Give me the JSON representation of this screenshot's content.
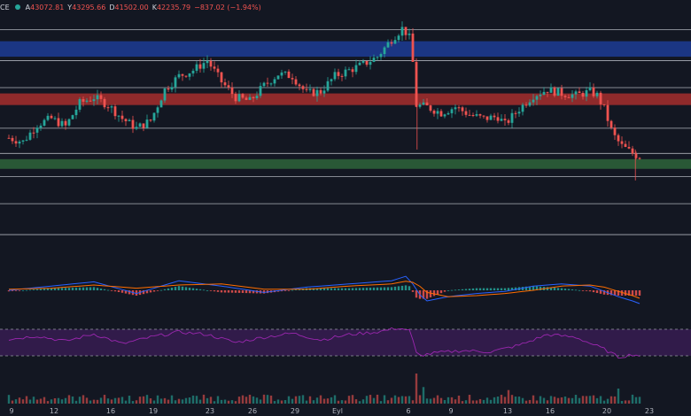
{
  "header": {
    "ticker": "CE",
    "status_color": "#26a69a",
    "ohlc": [
      {
        "label": "A",
        "value": "43072.81"
      },
      {
        "label": "Y",
        "value": "43295.66"
      },
      {
        "label": "D",
        "value": "41502.00"
      },
      {
        "label": "K",
        "value": "42235.79"
      }
    ],
    "change": "−837.02 (−1.94%)",
    "value_color": "#ef5350"
  },
  "colors": {
    "background": "#131722",
    "up": "#26a69a",
    "down": "#ef5350",
    "zone_blue": "#1e3fa0",
    "zone_red": "#b2302e",
    "zone_green": "#2f6a3c",
    "hline": "#c8cbd2",
    "rsi_line": "#9c27b0",
    "rsi_band": "#4a1f6b",
    "macd_line": "#2962ff",
    "signal_line": "#ff6d00"
  },
  "chart_data": {
    "type": "candlestick",
    "x_tick_labels": [
      "9",
      "12",
      "16",
      "19",
      "23",
      "26",
      "29",
      "Eyl",
      "6",
      "9",
      "13",
      "16",
      "20",
      "23"
    ],
    "x_tick_days": [
      0,
      3,
      7,
      10,
      14,
      17,
      20,
      23,
      28,
      31,
      35,
      38,
      42,
      45
    ],
    "price_levels": [
      35.2,
      38.4,
      41.2,
      43.6,
      46.2,
      50.4,
      53.2,
      56.4
    ],
    "zones": [
      {
        "name": "resistance-blue",
        "from": 53.6,
        "to": 55.2
      },
      {
        "name": "resistance-red",
        "from": 48.6,
        "to": 49.8
      },
      {
        "name": "support-green",
        "from": 42.0,
        "to": 43.0
      }
    ],
    "close_path": [
      [
        0,
        45.2
      ],
      [
        1,
        44.8
      ],
      [
        2,
        46.6
      ],
      [
        3,
        47.2
      ],
      [
        4,
        46.4
      ],
      [
        5,
        48.8
      ],
      [
        6,
        49.4
      ],
      [
        7,
        48.6
      ],
      [
        8,
        47.2
      ],
      [
        9,
        46.2
      ],
      [
        10,
        47.0
      ],
      [
        11,
        50.2
      ],
      [
        12,
        51.6
      ],
      [
        13,
        52.2
      ],
      [
        14,
        53.2
      ],
      [
        15,
        51.0
      ],
      [
        16,
        49.4
      ],
      [
        17,
        49.0
      ],
      [
        18,
        50.6
      ],
      [
        19,
        51.8
      ],
      [
        20,
        51.6
      ],
      [
        21,
        49.8
      ],
      [
        22,
        50.0
      ],
      [
        23,
        51.6
      ],
      [
        24,
        52.2
      ],
      [
        25,
        52.8
      ],
      [
        26,
        53.6
      ],
      [
        27,
        55.4
      ],
      [
        27.8,
        56.6
      ],
      [
        28.4,
        55.2
      ],
      [
        28.7,
        48.6
      ],
      [
        29.5,
        48.4
      ],
      [
        30.5,
        47.8
      ],
      [
        31.5,
        48.4
      ],
      [
        32.5,
        47.6
      ],
      [
        33.5,
        47.2
      ],
      [
        34.5,
        47.4
      ],
      [
        35,
        46.6
      ],
      [
        36,
        48.2
      ],
      [
        37,
        49.6
      ],
      [
        38,
        50.2
      ],
      [
        39,
        49.8
      ],
      [
        40,
        49.6
      ],
      [
        41,
        50.0
      ],
      [
        41.5,
        49.6
      ],
      [
        42,
        48.2
      ],
      [
        42.6,
        45.6
      ],
      [
        43.2,
        44.4
      ],
      [
        44,
        43.6
      ],
      [
        44.6,
        43.2
      ]
    ],
    "macd_path": [
      [
        0,
        0.0
      ],
      [
        3,
        0.4
      ],
      [
        6,
        0.8
      ],
      [
        9,
        -0.3
      ],
      [
        12,
        0.9
      ],
      [
        15,
        0.4
      ],
      [
        18,
        -0.2
      ],
      [
        21,
        0.3
      ],
      [
        24,
        0.6
      ],
      [
        27,
        0.9
      ],
      [
        28.2,
        1.4
      ],
      [
        28.8,
        -0.2
      ],
      [
        29.5,
        -1.0
      ],
      [
        31,
        -0.6
      ],
      [
        33,
        -0.3
      ],
      [
        35,
        -0.1
      ],
      [
        37,
        0.4
      ],
      [
        39,
        0.6
      ],
      [
        41,
        0.4
      ],
      [
        42,
        -0.1
      ],
      [
        43,
        -0.6
      ],
      [
        44,
        -1.0
      ],
      [
        44.6,
        -1.3
      ]
    ],
    "signal_path": [
      [
        0,
        0.1
      ],
      [
        3,
        0.2
      ],
      [
        6,
        0.5
      ],
      [
        9,
        0.2
      ],
      [
        12,
        0.5
      ],
      [
        15,
        0.6
      ],
      [
        18,
        0.1
      ],
      [
        21,
        0.1
      ],
      [
        24,
        0.4
      ],
      [
        27,
        0.6
      ],
      [
        28.2,
        0.9
      ],
      [
        28.8,
        0.6
      ],
      [
        29.5,
        -0.2
      ],
      [
        31,
        -0.6
      ],
      [
        33,
        -0.5
      ],
      [
        35,
        -0.3
      ],
      [
        37,
        0.0
      ],
      [
        39,
        0.4
      ],
      [
        41,
        0.5
      ],
      [
        42,
        0.3
      ],
      [
        43,
        -0.1
      ],
      [
        44,
        -0.5
      ],
      [
        44.6,
        -0.8
      ]
    ],
    "rsi_band": [
      30,
      70
    ],
    "rsi_path": [
      [
        0,
        55
      ],
      [
        2,
        60
      ],
      [
        4,
        52
      ],
      [
        6,
        63
      ],
      [
        8,
        48
      ],
      [
        10,
        58
      ],
      [
        12,
        66
      ],
      [
        14,
        62
      ],
      [
        16,
        50
      ],
      [
        18,
        58
      ],
      [
        20,
        64
      ],
      [
        22,
        54
      ],
      [
        24,
        62
      ],
      [
        26,
        66
      ],
      [
        27.5,
        72
      ],
      [
        28.3,
        68
      ],
      [
        28.8,
        30
      ],
      [
        30,
        34
      ],
      [
        32,
        38
      ],
      [
        34,
        36
      ],
      [
        36,
        46
      ],
      [
        38,
        62
      ],
      [
        40,
        58
      ],
      [
        42,
        40
      ],
      [
        43,
        28
      ],
      [
        44,
        32
      ],
      [
        44.6,
        30
      ]
    ],
    "volume_spikes": [
      {
        "day": 28.8,
        "v": 1.0
      },
      {
        "day": 29.2,
        "v": 0.55
      },
      {
        "day": 35.2,
        "v": 0.45
      },
      {
        "day": 42.9,
        "v": 0.5
      }
    ]
  }
}
